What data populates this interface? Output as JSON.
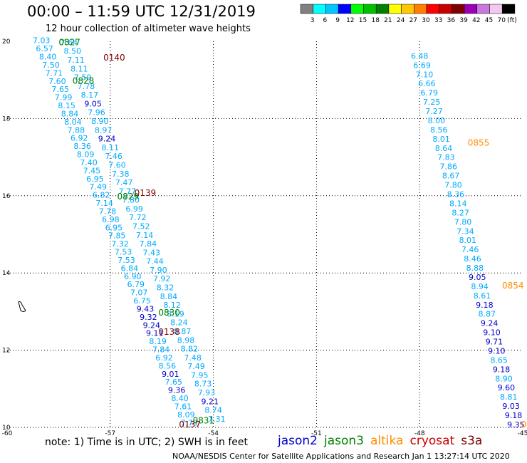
{
  "title": "00:00 – 11:59 UTC 12/31/2019",
  "subtitle": "12 hour collection of altimeter wave heights",
  "note": "note: 1) Time is in UTC; 2) SWH is in feet",
  "credit": "NOAA/NESDIS Center for Satellite Applications and Research   Jan  1 13:27:14 UTC 2020",
  "colorbar": {
    "unit": "(ft)",
    "bins": [
      {
        "color": "#808080",
        "label": "3"
      },
      {
        "color": "#00ffff",
        "label": "6"
      },
      {
        "color": "#00c8ff",
        "label": "9"
      },
      {
        "color": "#0000ff",
        "label": "12"
      },
      {
        "color": "#00ff00",
        "label": "15"
      },
      {
        "color": "#00c000",
        "label": "18"
      },
      {
        "color": "#008000",
        "label": "21"
      },
      {
        "color": "#ffff00",
        "label": "24"
      },
      {
        "color": "#ffc800",
        "label": "27"
      },
      {
        "color": "#ff8000",
        "label": "30"
      },
      {
        "color": "#ff0000",
        "label": "33"
      },
      {
        "color": "#c80000",
        "label": "36"
      },
      {
        "color": "#800000",
        "label": "39"
      },
      {
        "color": "#9b00b4",
        "label": "42"
      },
      {
        "color": "#c878dc",
        "label": "45"
      },
      {
        "color": "#f0c8f0",
        "label": "70"
      },
      {
        "color": "#000000",
        "label": ""
      }
    ]
  },
  "satellites": [
    {
      "name": "jason2",
      "color": "#0000cc"
    },
    {
      "name": "jason3",
      "color": "#008000"
    },
    {
      "name": "altika",
      "color": "#ff8c00"
    },
    {
      "name": "cryosat",
      "color": "#cc0000"
    },
    {
      "name": "s3a",
      "color": "#800000"
    }
  ],
  "axes": {
    "lon_labels": [
      "-60",
      "-57",
      "-54",
      "-51",
      "-48",
      "-45"
    ],
    "lat_labels": [
      "20",
      "18",
      "16",
      "14",
      "12",
      "10"
    ],
    "lon_range": [
      -60,
      -45
    ],
    "lat_range": [
      10,
      20
    ]
  },
  "tracks": [
    {
      "name": "track-west",
      "start": [
        -59.0,
        19.95
      ],
      "end": [
        -54.7,
        10.05
      ],
      "values": [
        "7.03",
        "6.57",
        "8.40",
        "7.50",
        "7.71",
        "7.60",
        "7.65",
        "7.99",
        "8.15",
        "8.84",
        "8.04",
        "7.88",
        "6.92",
        "8.36",
        "8.09",
        "7.40",
        "7.45",
        "6.95",
        "7.49",
        "6.82",
        "7.14",
        "7.78",
        "6.98",
        "6.95",
        "7.85",
        "7.32",
        "7.53",
        "7.53",
        "6.84",
        "6.90",
        "6.79",
        "7.07",
        "6.75",
        "9.43",
        "9.32",
        "9.24",
        "9.11",
        "8.19",
        "7.84",
        "6.92",
        "8.56",
        "9.01",
        "7.65",
        "9.36",
        "8.40",
        "7.61",
        "8.09",
        "7.73"
      ],
      "colors": [
        "#00aaff",
        "#00aaff",
        "#00aaff",
        "#00aaff",
        "#00aaff",
        "#00aaff",
        "#00aaff",
        "#00aaff",
        "#00aaff",
        "#00aaff",
        "#00aaff",
        "#00aaff",
        "#00aaff",
        "#00aaff",
        "#00aaff",
        "#00aaff",
        "#00aaff",
        "#00aaff",
        "#00aaff",
        "#00aaff",
        "#00aaff",
        "#00aaff",
        "#00aaff",
        "#00aaff",
        "#00aaff",
        "#00aaff",
        "#00aaff",
        "#00aaff",
        "#00aaff",
        "#00aaff",
        "#00aaff",
        "#00aaff",
        "#00aaff",
        "#0000cc",
        "#0000cc",
        "#0000cc",
        "#0000cc",
        "#00aaff",
        "#00aaff",
        "#00aaff",
        "#00aaff",
        "#0000cc",
        "#00aaff",
        "#0000cc",
        "#00aaff",
        "#00aaff",
        "#00aaff",
        "#00aaff"
      ]
    },
    {
      "name": "track-west-b",
      "start": [
        -58.2,
        19.9
      ],
      "end": [
        -53.9,
        10.15
      ],
      "values": [
        "7.64",
        "8.50",
        "7.11",
        "8.11",
        "7.59",
        "7.78",
        "8.17",
        "9.05",
        "7.96",
        "8.90",
        "8.97",
        "9.24",
        "8.11",
        "7.46",
        "7.60",
        "7.38",
        "7.47",
        "7.77",
        "7.80",
        "6.99",
        "7.72",
        "7.52",
        "7.14",
        "7.84",
        "7.43",
        "7.44",
        "7.90",
        "7.92",
        "8.32",
        "8.84",
        "8.12",
        "8.19",
        "8.24",
        "8.87",
        "8.98",
        "8.82",
        "7.48",
        "7.49",
        "7.95",
        "8.73",
        "7.93",
        "9.21",
        "8.74",
        "7.31"
      ],
      "colors": [
        "#00aaff",
        "#00aaff",
        "#00aaff",
        "#00aaff",
        "#00aaff",
        "#00aaff",
        "#00aaff",
        "#0000cc",
        "#00aaff",
        "#00aaff",
        "#00aaff",
        "#0000cc",
        "#00aaff",
        "#00aaff",
        "#00aaff",
        "#00aaff",
        "#00aaff",
        "#00aaff",
        "#00aaff",
        "#00aaff",
        "#00aaff",
        "#00aaff",
        "#00aaff",
        "#00aaff",
        "#00aaff",
        "#00aaff",
        "#00aaff",
        "#00aaff",
        "#00aaff",
        "#00aaff",
        "#00aaff",
        "#00aaff",
        "#00aaff",
        "#00aaff",
        "#00aaff",
        "#00aaff",
        "#00aaff",
        "#00aaff",
        "#00aaff",
        "#00aaff",
        "#00aaff",
        "#0000cc",
        "#00aaff",
        "#00aaff"
      ]
    },
    {
      "name": "track-east",
      "start": [
        -48.0,
        19.55
      ],
      "end": [
        -45.2,
        10.0
      ],
      "values": [
        "6.48",
        "6.69",
        "7.10",
        "6.66",
        "6.79",
        "7.25",
        "7.27",
        "8.00",
        "8.56",
        "8.01",
        "8.64",
        "7.83",
        "7.86",
        "8.67",
        "7.80",
        "8.36",
        "8.14",
        "8.27",
        "7.80",
        "7.34",
        "8.01",
        "7.46",
        "8.46",
        "8.88",
        "9.05",
        "8.94",
        "8.61",
        "9.18",
        "8.87",
        "9.24",
        "9.10",
        "9.71",
        "9.10",
        "8.65",
        "9.18",
        "8.90",
        "9.60",
        "8.81",
        "9.03",
        "9.18",
        "9.35"
      ],
      "colors": [
        "#00aaff",
        "#00aaff",
        "#00aaff",
        "#00aaff",
        "#00aaff",
        "#00aaff",
        "#00aaff",
        "#00aaff",
        "#00aaff",
        "#00aaff",
        "#00aaff",
        "#00aaff",
        "#00aaff",
        "#00aaff",
        "#00aaff",
        "#00aaff",
        "#00aaff",
        "#00aaff",
        "#00aaff",
        "#00aaff",
        "#00aaff",
        "#00aaff",
        "#00aaff",
        "#00aaff",
        "#0000cc",
        "#00aaff",
        "#00aaff",
        "#0000cc",
        "#00aaff",
        "#0000cc",
        "#0000cc",
        "#0000cc",
        "#0000cc",
        "#00aaff",
        "#0000cc",
        "#00aaff",
        "#0000cc",
        "#00aaff",
        "#0000cc",
        "#0000cc",
        "#0000cc"
      ]
    }
  ],
  "time_labels": [
    {
      "text": "0827",
      "color": "#008000",
      "lon": -58.5,
      "lat": 19.9
    },
    {
      "text": "0140",
      "color": "#800000",
      "lon": -57.2,
      "lat": 19.5
    },
    {
      "text": "0828",
      "color": "#008000",
      "lon": -58.1,
      "lat": 18.9
    },
    {
      "text": "0139",
      "color": "#800000",
      "lon": -56.3,
      "lat": 16.0
    },
    {
      "text": "0829",
      "color": "#008000",
      "lon": -56.8,
      "lat": 15.9
    },
    {
      "text": "0830",
      "color": "#008000",
      "lon": -55.6,
      "lat": 12.9
    },
    {
      "text": "0138",
      "color": "#800000",
      "lon": -55.6,
      "lat": 12.4
    },
    {
      "text": "0831",
      "color": "#008000",
      "lon": -54.6,
      "lat": 10.1
    },
    {
      "text": "0137",
      "color": "#800000",
      "lon": -55.0,
      "lat": 10.0
    },
    {
      "text": "0855",
      "color": "#ff8c00",
      "lon": -46.6,
      "lat": 17.3
    },
    {
      "text": "0854",
      "color": "#ff8c00",
      "lon": -45.6,
      "lat": 13.6
    },
    {
      "text": "0",
      "color": "#ff8c00",
      "lon": -45.05,
      "lat": 10.0
    }
  ]
}
